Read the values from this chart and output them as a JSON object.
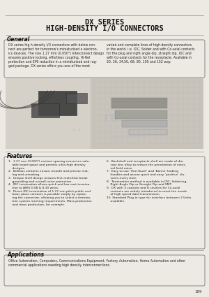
{
  "bg_color": "#edeae4",
  "title_line1": "DX SERIES",
  "title_line2": "HIGH-DENSITY I/O CONNECTORS",
  "section_general": "General",
  "gen_left": "DX series hig h-density I/O connectors with below con-\nnect are perfect for tomorrow's miniaturized a electron-\nics devices. The size 1.27 mm (0.050\") Interconnect design\nensures positive locking, effortless coupling, Hi-Rel\nprotection and EMI reduction in a miniaturized and rug-\nged package. DX series offers you one of the most",
  "gen_right": "varied and complete lines of high-density connectors\nin the world, i.e. IDC, Solder and with Co-axial contacts\nfor the plug and right angle dip, straight dip, IDC and\nwith Co-axial contacts for the receptacle. Available in\n20, 26, 34,50, 68, 80, 100 and 152 way.",
  "section_features": "Features",
  "feat_left": "1.  1.27 mm (0.050\") contact spacing conserves valu-\n    able board space and permits ultra-high density\n    designs.\n2.  Bellows contacts ensure smooth and precise mat-\n    ing and unmating.\n3.  Unique shell design assures first mate/last break\n    grounding and overall noise protection.\n4.  IDC termination allows quick and low cost termina-\n    tion to AWG 0.08 & 8.30 wires.\n5.  Direct IDC termination of 1.27 mm pitch public and\n    basic place contacts is possible simply by replac-\n    ing the connector, allowing you to select a termina-\n    tion system meeting requirements. Mass production\n    and mass production, for example.",
  "feat_right": "6.  Backshell and receptacle shell are made of die-\n    cast zinc alloy to reduce the penetration of exter-\n    nal field noise.\n7.  Easy to use 'One-Touch' and 'Bonne' looking\n    handles and assure quick and easy 'positive' clo-\n    sures every time.\n8.  Termination method is available in IDC, Soldering,\n    Right Angle Dip or Straight Dip and SMT.\n9.  DX with 3 coaxials and 8 cavities for Co-axial\n    contacts are widely introduced to meet the needs\n    of high speed data transmission.\n10. Standard Plug-in type for interface between 2 Units\n    available.",
  "section_applications": "Applications",
  "app_text": "Office Automation, Computers, Communications Equipment, Factory Automation, Home Automation and other\ncommercial applications needing high density interconnections.",
  "page_number": "189",
  "line_color": "#999990",
  "border_color": "#777770",
  "text_color": "#222222",
  "title_color": "#111111"
}
